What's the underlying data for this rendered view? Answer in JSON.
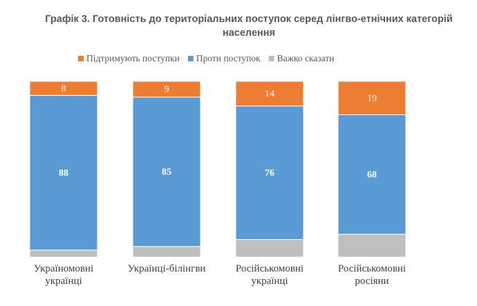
{
  "chart_data": {
    "type": "stacked-bar",
    "title": "Графік 3. Готовність до територіальних поступок серед лінгво-етнічних категорій населення",
    "categories": [
      "Україномовні українці",
      "Українці-білінгви",
      "Російськомовні українці",
      "Російськомовні росіяни"
    ],
    "series": [
      {
        "name": "Підтримують поступки",
        "color": "#ed7d31",
        "values": [
          8,
          9,
          14,
          19
        ]
      },
      {
        "name": "Проти поступок",
        "color": "#5b9bd5",
        "values": [
          88,
          85,
          76,
          68
        ]
      },
      {
        "name": "Важко сказати",
        "color": "#bfbfbf",
        "values": [
          4,
          6,
          10,
          13
        ]
      }
    ],
    "data_labels": [
      true,
      true,
      false
    ]
  }
}
